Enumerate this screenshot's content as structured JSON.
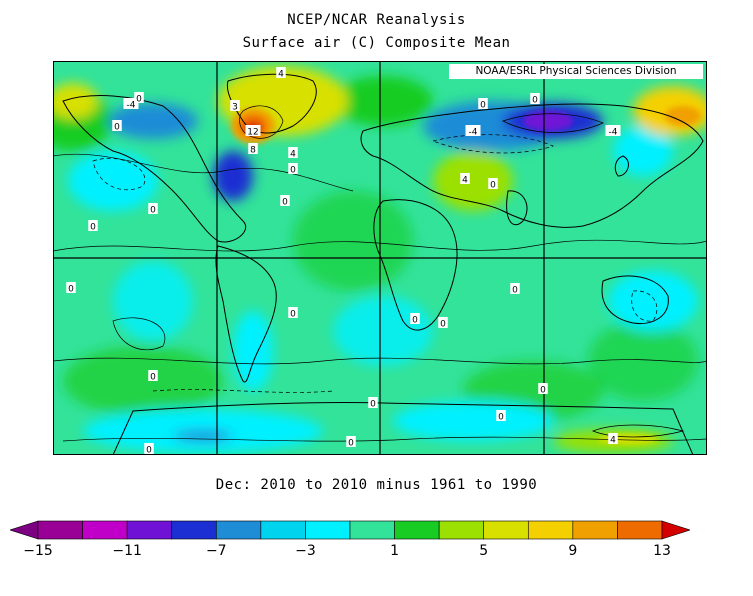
{
  "header": {
    "title": "NCEP/NCAR Reanalysis",
    "subtitle": "Surface air (C) Composite Mean"
  },
  "map": {
    "credit": "NOAA/ESRL Physical Sciences Division",
    "period": "Dec: 2010 to 2010 minus 1961 to 1990",
    "contour_labels": [
      "4",
      "-4",
      "0",
      "3",
      "12",
      "8",
      "4",
      "0",
      "0",
      "0",
      "-4",
      "-4",
      "0",
      "4",
      "0",
      "0",
      "0",
      "0",
      "0",
      "0",
      "0",
      "0",
      "0",
      "0",
      "0",
      "0",
      "0",
      "4",
      "0",
      "0"
    ]
  },
  "colorbar": {
    "colors": [
      "#7b0082",
      "#990096",
      "#c000c8",
      "#6f12d6",
      "#1b2fd2",
      "#1f8cd6",
      "#00d3ee",
      "#00f0ff",
      "#33e39a",
      "#18cc24",
      "#9be000",
      "#d8e000",
      "#f5d000",
      "#f0a000",
      "#ee6b00",
      "#d40000"
    ],
    "ticks": [
      "-15",
      "-11",
      "-7",
      "-3",
      "1",
      "5",
      "9",
      "13"
    ]
  }
}
